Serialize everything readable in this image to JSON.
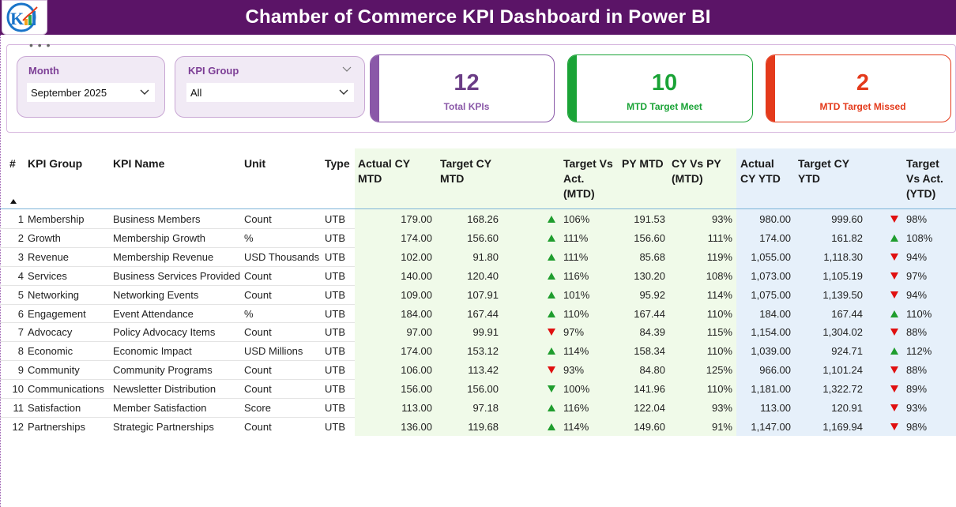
{
  "header": {
    "title": "Chamber of Commerce KPI Dashboard in Power BI"
  },
  "slicers": {
    "month": {
      "label": "Month",
      "value": "September 2025"
    },
    "kpi_group": {
      "label": "KPI Group",
      "value": "All"
    }
  },
  "cards": [
    {
      "value": "12",
      "label": "Total KPIs",
      "color": "#8a58a8"
    },
    {
      "value": "10",
      "label": "MTD Target Meet",
      "color": "#1aa336"
    },
    {
      "value": "2",
      "label": "MTD Target Missed",
      "color": "#e43a1b"
    }
  ],
  "table": {
    "headers": {
      "num": "#",
      "group": "KPI Group",
      "name": "KPI Name",
      "unit": "Unit",
      "type": "Type",
      "actual_mtd_1": "Actual CY",
      "actual_mtd_2": "MTD",
      "target_mtd_1": "Target CY",
      "target_mtd_2": "MTD",
      "tva_mtd_1": "Target Vs",
      "tva_mtd_2": "Act.",
      "tva_mtd_3": "(MTD)",
      "py_mtd": "PY MTD",
      "cyvpy_1": "CY Vs PY",
      "cyvpy_2": "(MTD)",
      "actual_ytd_1": "Actual",
      "actual_ytd_2": "CY YTD",
      "target_ytd_1": "Target CY",
      "target_ytd_2": "YTD",
      "tva_ytd_1": "Target",
      "tva_ytd_2": "Vs Act.",
      "tva_ytd_3": "(YTD)"
    },
    "rows": [
      {
        "n": "1",
        "group": "Membership",
        "name": "Business Members",
        "unit": "Count",
        "type": "UTB",
        "act_mtd": "179.00",
        "tgt_mtd": "168.26",
        "mtd_dir": "up",
        "tva_mtd": "106%",
        "py_mtd": "191.53",
        "cyvpy": "93%",
        "act_ytd": "980.00",
        "tgt_ytd": "999.60",
        "ytd_dir": "down",
        "tva_ytd": "98%"
      },
      {
        "n": "2",
        "group": "Growth",
        "name": "Membership Growth",
        "unit": "%",
        "type": "UTB",
        "act_mtd": "174.00",
        "tgt_mtd": "156.60",
        "mtd_dir": "up",
        "tva_mtd": "111%",
        "py_mtd": "156.60",
        "cyvpy": "111%",
        "act_ytd": "174.00",
        "tgt_ytd": "161.82",
        "ytd_dir": "up",
        "tva_ytd": "108%"
      },
      {
        "n": "3",
        "group": "Revenue",
        "name": "Membership Revenue",
        "unit": "USD Thousands",
        "type": "UTB",
        "act_mtd": "102.00",
        "tgt_mtd": "91.80",
        "mtd_dir": "up",
        "tva_mtd": "111%",
        "py_mtd": "85.68",
        "cyvpy": "119%",
        "act_ytd": "1,055.00",
        "tgt_ytd": "1,118.30",
        "ytd_dir": "down",
        "tva_ytd": "94%"
      },
      {
        "n": "4",
        "group": "Services",
        "name": "Business Services Provided",
        "unit": "Count",
        "type": "UTB",
        "act_mtd": "140.00",
        "tgt_mtd": "120.40",
        "mtd_dir": "up",
        "tva_mtd": "116%",
        "py_mtd": "130.20",
        "cyvpy": "108%",
        "act_ytd": "1,073.00",
        "tgt_ytd": "1,105.19",
        "ytd_dir": "down",
        "tva_ytd": "97%"
      },
      {
        "n": "5",
        "group": "Networking",
        "name": "Networking Events",
        "unit": "Count",
        "type": "UTB",
        "act_mtd": "109.00",
        "tgt_mtd": "107.91",
        "mtd_dir": "up",
        "tva_mtd": "101%",
        "py_mtd": "95.92",
        "cyvpy": "114%",
        "act_ytd": "1,075.00",
        "tgt_ytd": "1,139.50",
        "ytd_dir": "down",
        "tva_ytd": "94%"
      },
      {
        "n": "6",
        "group": "Engagement",
        "name": "Event Attendance",
        "unit": "%",
        "type": "UTB",
        "act_mtd": "184.00",
        "tgt_mtd": "167.44",
        "mtd_dir": "up",
        "tva_mtd": "110%",
        "py_mtd": "167.44",
        "cyvpy": "110%",
        "act_ytd": "184.00",
        "tgt_ytd": "167.44",
        "ytd_dir": "up",
        "tva_ytd": "110%"
      },
      {
        "n": "7",
        "group": "Advocacy",
        "name": "Policy Advocacy Items",
        "unit": "Count",
        "type": "UTB",
        "act_mtd": "97.00",
        "tgt_mtd": "99.91",
        "mtd_dir": "down",
        "tva_mtd": "97%",
        "py_mtd": "84.39",
        "cyvpy": "115%",
        "act_ytd": "1,154.00",
        "tgt_ytd": "1,304.02",
        "ytd_dir": "down",
        "tva_ytd": "88%"
      },
      {
        "n": "8",
        "group": "Economic",
        "name": "Economic Impact",
        "unit": "USD Millions",
        "type": "UTB",
        "act_mtd": "174.00",
        "tgt_mtd": "153.12",
        "mtd_dir": "up",
        "tva_mtd": "114%",
        "py_mtd": "158.34",
        "cyvpy": "110%",
        "act_ytd": "1,039.00",
        "tgt_ytd": "924.71",
        "ytd_dir": "up",
        "tva_ytd": "112%"
      },
      {
        "n": "9",
        "group": "Community",
        "name": "Community Programs",
        "unit": "Count",
        "type": "UTB",
        "act_mtd": "106.00",
        "tgt_mtd": "113.42",
        "mtd_dir": "down",
        "tva_mtd": "93%",
        "py_mtd": "84.80",
        "cyvpy": "125%",
        "act_ytd": "966.00",
        "tgt_ytd": "1,101.24",
        "ytd_dir": "down",
        "tva_ytd": "88%"
      },
      {
        "n": "10",
        "group": "Communications",
        "name": "Newsletter Distribution",
        "unit": "Count",
        "type": "UTB",
        "act_mtd": "156.00",
        "tgt_mtd": "156.00",
        "mtd_dir": "down-green",
        "tva_mtd": "100%",
        "py_mtd": "141.96",
        "cyvpy": "110%",
        "act_ytd": "1,181.00",
        "tgt_ytd": "1,322.72",
        "ytd_dir": "down",
        "tva_ytd": "89%"
      },
      {
        "n": "11",
        "group": "Satisfaction",
        "name": "Member Satisfaction",
        "unit": "Score",
        "type": "UTB",
        "act_mtd": "113.00",
        "tgt_mtd": "97.18",
        "mtd_dir": "up",
        "tva_mtd": "116%",
        "py_mtd": "122.04",
        "cyvpy": "93%",
        "act_ytd": "113.00",
        "tgt_ytd": "120.91",
        "ytd_dir": "down",
        "tva_ytd": "93%"
      },
      {
        "n": "12",
        "group": "Partnerships",
        "name": "Strategic Partnerships",
        "unit": "Count",
        "type": "UTB",
        "act_mtd": "136.00",
        "tgt_mtd": "119.68",
        "mtd_dir": "up",
        "tva_mtd": "114%",
        "py_mtd": "149.60",
        "cyvpy": "91%",
        "act_ytd": "1,147.00",
        "tgt_ytd": "1,169.94",
        "ytd_dir": "down",
        "tva_ytd": "98%"
      }
    ]
  },
  "colors": {
    "up": "#1f9d2e",
    "down": "#e01010",
    "header_bg": "#5b1467"
  }
}
